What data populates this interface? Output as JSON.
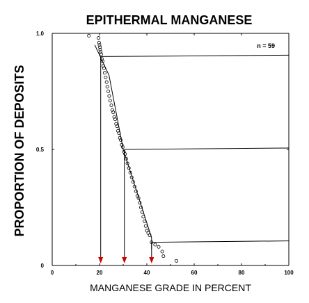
{
  "chart_data": {
    "type": "scatter",
    "title": "EPITHERMAL MANGANESE",
    "xlabel": "MANGANESE GRADE IN PERCENT",
    "ylabel": "PROPORTION OF DEPOSITS",
    "xlim": [
      0,
      100
    ],
    "ylim": [
      0,
      1
    ],
    "xticks": [
      0,
      20,
      40,
      60,
      80,
      100
    ],
    "yticks": [
      0,
      0.5,
      1
    ],
    "xtick_labels": [
      "0",
      "20",
      "40",
      "60",
      "80",
      "100"
    ],
    "ytick_labels": [
      "0",
      "0.5",
      "1.0"
    ],
    "annotation": "n = 59",
    "legend": "none",
    "grid": false,
    "fit_line": [
      [
        18,
        0.95
      ],
      [
        24,
        0.82
      ],
      [
        30,
        0.5
      ],
      [
        42,
        0.12
      ],
      [
        42,
        0.07
      ]
    ],
    "percentiles": [
      {
        "grade": 20.5,
        "proportion": 0.9
      },
      {
        "grade": 30.5,
        "proportion": 0.5
      },
      {
        "grade": 42,
        "proportion": 0.1
      }
    ],
    "points": [
      [
        15.5,
        0.99
      ],
      [
        19.6,
        0.98
      ],
      [
        19.8,
        0.96
      ],
      [
        20.0,
        0.95
      ],
      [
        20.2,
        0.94
      ],
      [
        20.3,
        0.93
      ],
      [
        20.5,
        0.92
      ],
      [
        20.7,
        0.91
      ],
      [
        21.0,
        0.89
      ],
      [
        21.3,
        0.88
      ],
      [
        21.6,
        0.86
      ],
      [
        21.9,
        0.85
      ],
      [
        22.2,
        0.83
      ],
      [
        22.6,
        0.81
      ],
      [
        23.0,
        0.79
      ],
      [
        23.3,
        0.77
      ],
      [
        23.7,
        0.75
      ],
      [
        24.1,
        0.73
      ],
      [
        24.5,
        0.71
      ],
      [
        25.0,
        0.69
      ],
      [
        25.4,
        0.67
      ],
      [
        25.8,
        0.66
      ],
      [
        26.2,
        0.64
      ],
      [
        26.6,
        0.63
      ],
      [
        27.0,
        0.61
      ],
      [
        27.4,
        0.6
      ],
      [
        27.8,
        0.58
      ],
      [
        28.2,
        0.57
      ],
      [
        28.6,
        0.55
      ],
      [
        29.0,
        0.54
      ],
      [
        29.4,
        0.52
      ],
      [
        29.8,
        0.51
      ],
      [
        30.3,
        0.49
      ],
      [
        30.8,
        0.48
      ],
      [
        31.3,
        0.46
      ],
      [
        31.8,
        0.44
      ],
      [
        32.4,
        0.42
      ],
      [
        33.0,
        0.4
      ],
      [
        33.6,
        0.38
      ],
      [
        34.2,
        0.36
      ],
      [
        34.8,
        0.34
      ],
      [
        35.4,
        0.32
      ],
      [
        36.0,
        0.3
      ],
      [
        36.5,
        0.29
      ],
      [
        37.0,
        0.27
      ],
      [
        37.5,
        0.25
      ],
      [
        38.0,
        0.23
      ],
      [
        38.5,
        0.21
      ],
      [
        39.0,
        0.19
      ],
      [
        39.5,
        0.17
      ],
      [
        40.0,
        0.15
      ],
      [
        40.6,
        0.14
      ],
      [
        41.2,
        0.13
      ],
      [
        42.0,
        0.1
      ],
      [
        43.5,
        0.09
      ],
      [
        45.0,
        0.08
      ],
      [
        46.5,
        0.06
      ],
      [
        47.0,
        0.04
      ],
      [
        52.5,
        0.02
      ]
    ]
  },
  "colors": {
    "axis": "#000000",
    "points": "#000000",
    "arrows": "#d40000",
    "background": "#ffffff"
  }
}
